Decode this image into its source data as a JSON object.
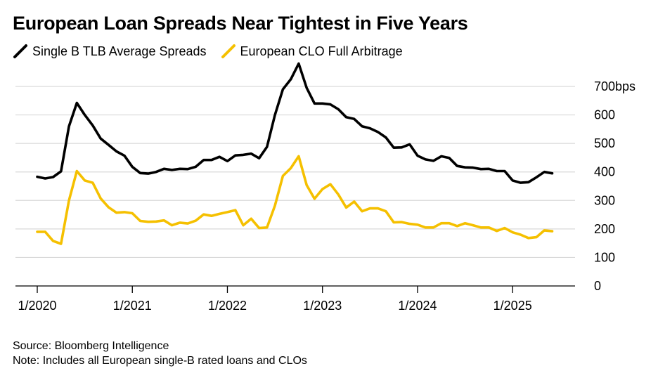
{
  "title": "European Loan Spreads Near Tightest in Five Years",
  "source": "Source: Bloomberg Intelligence",
  "note": "Note: Includes all European single-B rated loans and CLOs",
  "colors": {
    "series1": "#000000",
    "series2": "#f5c000",
    "grid": "#d9d9d9",
    "axis": "#000000"
  },
  "chart_data": {
    "type": "line",
    "x_start": "2020-01",
    "x_step": "month",
    "x_tick_labels": [
      "1/2020",
      "1/2021",
      "1/2022",
      "1/2023",
      "1/2024",
      "1/2025"
    ],
    "y_tick_labels": [
      "0",
      "100",
      "200",
      "300",
      "400",
      "500",
      "600",
      "700bps"
    ],
    "y_ticks": [
      0,
      100,
      200,
      300,
      400,
      500,
      600,
      700
    ],
    "ylim": [
      0,
      700
    ],
    "grid": true,
    "legend_position": "top-left",
    "series": [
      {
        "name": "Single B TLB Average Spreads",
        "values": [
          383,
          377,
          382,
          402,
          560,
          642,
          600,
          563,
          517,
          495,
          472,
          457,
          418,
          396,
          394,
          400,
          411,
          407,
          411,
          410,
          418,
          442,
          442,
          453,
          438,
          458,
          460,
          464,
          448,
          488,
          600,
          690,
          725,
          780,
          695,
          640,
          640,
          637,
          620,
          592,
          586,
          560,
          553,
          540,
          521,
          485,
          486,
          497,
          457,
          444,
          439,
          455,
          449,
          421,
          416,
          415,
          410,
          411,
          403,
          403,
          370,
          362,
          364,
          381,
          400,
          395
        ]
      },
      {
        "name": "European CLO Full Arbitrage",
        "values": [
          190,
          190,
          158,
          148,
          300,
          403,
          370,
          362,
          307,
          276,
          257,
          259,
          255,
          228,
          225,
          226,
          230,
          213,
          222,
          219,
          229,
          251,
          246,
          253,
          259,
          266,
          213,
          236,
          203,
          205,
          282,
          386,
          413,
          455,
          354,
          306,
          340,
          357,
          321,
          275,
          296,
          262,
          272,
          272,
          262,
          223,
          224,
          218,
          215,
          205,
          205,
          220,
          220,
          210,
          220,
          213,
          205,
          205,
          193,
          203,
          188,
          180,
          168,
          171,
          195,
          192
        ]
      }
    ]
  }
}
